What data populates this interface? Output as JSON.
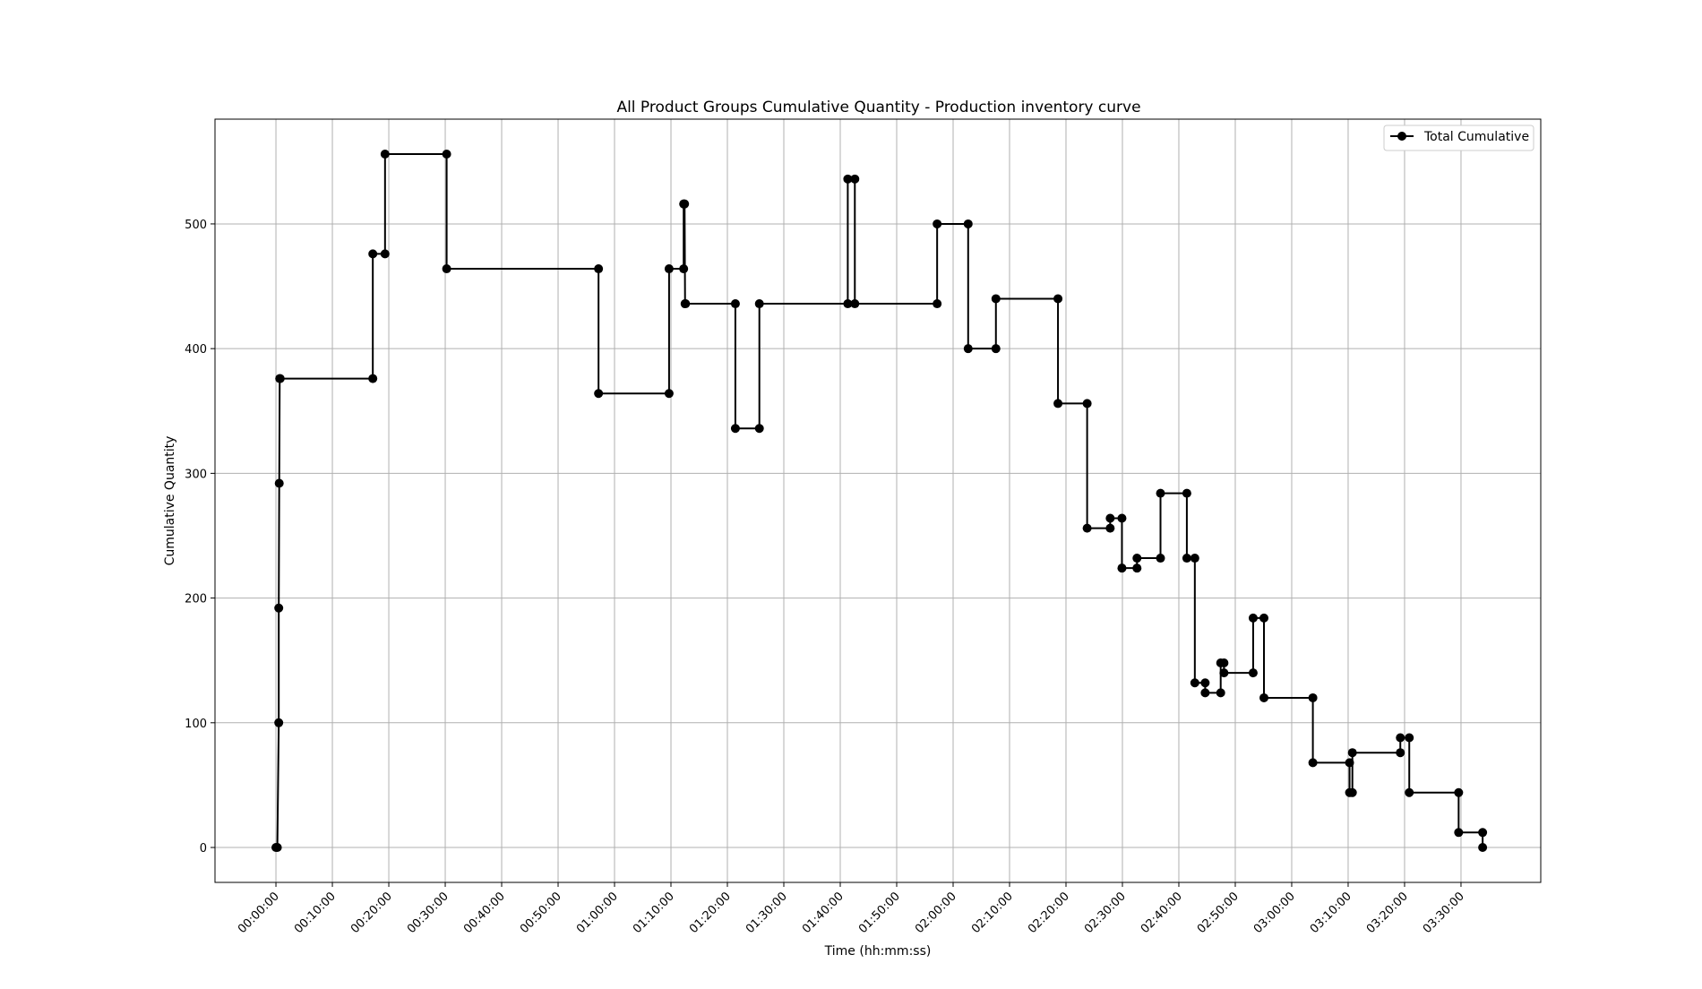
{
  "chart_data": {
    "type": "line",
    "title": "All Product Groups Cumulative Quantity - Production inventory curve",
    "xlabel": "Time (hh:mm:ss)",
    "ylabel": "Cumulative Quantity",
    "xlim": [
      "-00:10:48",
      "03:44:08"
    ],
    "ylim": [
      -28,
      584
    ],
    "x_ticks": [
      "00:00:00",
      "00:10:00",
      "00:20:00",
      "00:30:00",
      "00:40:00",
      "00:50:00",
      "01:00:00",
      "01:10:00",
      "01:20:00",
      "01:30:00",
      "01:40:00",
      "01:50:00",
      "02:00:00",
      "02:10:00",
      "02:20:00",
      "02:30:00",
      "02:40:00",
      "02:50:00",
      "03:00:00",
      "03:10:00",
      "03:20:00",
      "03:30:00"
    ],
    "y_ticks": [
      0,
      100,
      200,
      300,
      400,
      500
    ],
    "grid": true,
    "legend_position": "top-right",
    "series_color": "#000000",
    "series": [
      {
        "name": "Total Cumulative",
        "x": [
          "00:00:00",
          "00:00:15",
          "00:00:30",
          "00:00:30",
          "00:00:35",
          "00:00:40",
          "00:00:45",
          "00:17:10",
          "00:17:10",
          "00:19:20",
          "00:19:20",
          "00:30:15",
          "00:30:15",
          "00:57:10",
          "00:57:10",
          "01:09:40",
          "01:09:40",
          "01:12:15",
          "01:12:15",
          "01:12:25",
          "01:12:30",
          "01:12:35",
          "01:21:25",
          "01:21:25",
          "01:25:40",
          "01:25:40",
          "01:41:20",
          "01:41:20",
          "01:42:35",
          "01:42:35",
          "01:57:10",
          "01:57:10",
          "02:02:40",
          "02:02:40",
          "02:07:35",
          "02:07:35",
          "02:18:35",
          "02:18:35",
          "02:23:45",
          "02:23:45",
          "02:27:50",
          "02:27:50",
          "02:29:55",
          "02:29:55",
          "02:32:35",
          "02:32:35",
          "02:36:45",
          "02:36:45",
          "02:41:25",
          "02:41:25",
          "02:42:50",
          "02:42:50",
          "02:44:40",
          "02:44:40",
          "02:47:25",
          "02:47:25",
          "02:48:00",
          "02:48:00",
          "02:53:10",
          "02:53:10",
          "02:55:05",
          "02:55:05",
          "03:03:45",
          "03:03:45",
          "03:10:15",
          "03:10:15",
          "03:10:45",
          "03:10:45",
          "03:19:15",
          "03:19:15",
          "03:20:50",
          "03:20:50",
          "03:29:35",
          "03:29:35",
          "03:33:50",
          "03:33:50"
        ],
        "y": [
          0,
          0,
          100,
          192,
          292,
          376,
          376,
          376,
          476,
          476,
          556,
          556,
          464,
          464,
          364,
          364,
          464,
          464,
          516,
          516,
          436,
          436,
          436,
          336,
          336,
          436,
          436,
          536,
          536,
          436,
          436,
          500,
          500,
          400,
          400,
          440,
          440,
          356,
          356,
          256,
          256,
          264,
          264,
          224,
          224,
          232,
          232,
          284,
          284,
          232,
          232,
          132,
          132,
          124,
          124,
          148,
          148,
          140,
          140,
          184,
          184,
          120,
          120,
          68,
          68,
          44,
          44,
          76,
          76,
          88,
          88,
          44,
          44,
          12,
          12,
          0
        ]
      }
    ]
  }
}
